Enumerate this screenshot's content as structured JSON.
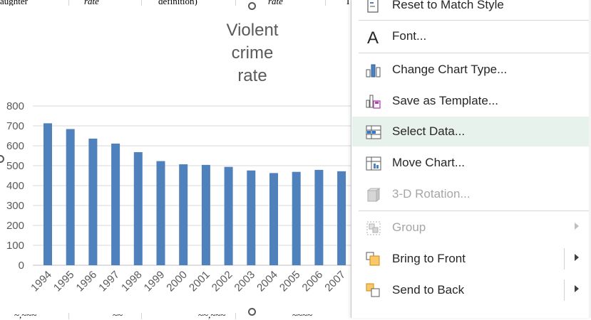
{
  "sheet": {
    "top_row_cells": [
      "aughter",
      "rate",
      "definition)",
      "rate",
      "I"
    ],
    "bottom_row_cells": [
      "~,~~~",
      "~~",
      "~~,~~~",
      "~~~~"
    ]
  },
  "chart": {
    "title_lines": [
      "Violent",
      "crime",
      "rate"
    ]
  },
  "chart_data": {
    "type": "bar",
    "title": "Violent crime rate",
    "categories": [
      "1994",
      "1995",
      "1996",
      "1997",
      "1998",
      "1999",
      "2000",
      "2001",
      "2002",
      "2003",
      "2004",
      "2005",
      "2006",
      "2007"
    ],
    "values": [
      713,
      684,
      636,
      611,
      568,
      523,
      507,
      504,
      494,
      476,
      463,
      469,
      479,
      472
    ],
    "ylim": [
      0,
      800
    ],
    "yticks": [
      0,
      100,
      200,
      300,
      400,
      500,
      600,
      700,
      800
    ],
    "grid": true,
    "bar_color": "#4f81bd"
  },
  "menu": {
    "items": [
      {
        "label": "Reset to Match Style",
        "icon": "reset-style-icon",
        "disabled": false,
        "submenu": false
      },
      {
        "label": "Font...",
        "icon": "font-icon",
        "disabled": false,
        "submenu": false
      },
      {
        "label": "Change Chart Type...",
        "icon": "chart-type-icon",
        "disabled": false,
        "submenu": false
      },
      {
        "label": "Save as Template...",
        "icon": "save-template-icon",
        "disabled": false,
        "submenu": false
      },
      {
        "label": "Select Data...",
        "icon": "select-data-icon",
        "disabled": false,
        "submenu": false
      },
      {
        "label": "Move Chart...",
        "icon": "move-chart-icon",
        "disabled": false,
        "submenu": false
      },
      {
        "label": "3-D Rotation...",
        "icon": "rotation-3d-icon",
        "disabled": true,
        "submenu": false
      },
      {
        "label": "Group",
        "icon": "group-icon",
        "disabled": true,
        "submenu": true
      },
      {
        "label": "Bring to Front",
        "icon": "bring-front-icon",
        "disabled": false,
        "submenu": true
      },
      {
        "label": "Send to Back",
        "icon": "send-back-icon",
        "disabled": false,
        "submenu": true
      }
    ],
    "highlight_color": "#e8f2ec"
  }
}
